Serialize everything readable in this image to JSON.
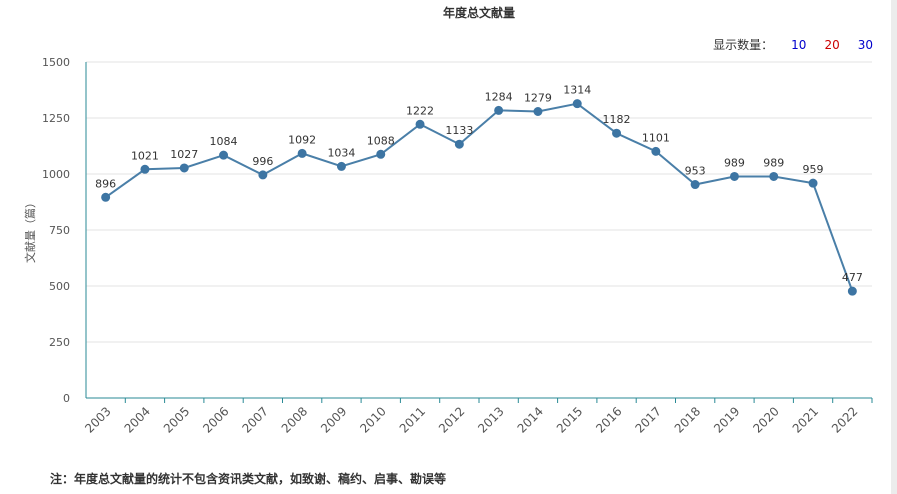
{
  "controls": {
    "show_count_label": "显示数量：",
    "options": [
      {
        "label": "10",
        "color": "#0000cc"
      },
      {
        "label": "20",
        "color": "#cc0000"
      },
      {
        "label": "30",
        "color": "#0000cc"
      }
    ]
  },
  "note": "注：年度总文献量的统计不包含资讯类文献，如致谢、稿约、启事、勘误等",
  "chart_data": {
    "type": "line",
    "title": "年度总文献量",
    "xlabel": "",
    "ylabel": "文献量（篇）",
    "categories": [
      "2003",
      "2004",
      "2005",
      "2006",
      "2007",
      "2008",
      "2009",
      "2010",
      "2011",
      "2012",
      "2013",
      "2014",
      "2015",
      "2016",
      "2017",
      "2018",
      "2019",
      "2020",
      "2021",
      "2022"
    ],
    "values": [
      896,
      1021,
      1027,
      1084,
      996,
      1092,
      1034,
      1088,
      1222,
      1133,
      1284,
      1279,
      1314,
      1182,
      1101,
      953,
      989,
      989,
      959,
      477
    ],
    "ylim": [
      0,
      1500
    ],
    "yticks": [
      0,
      250,
      500,
      750,
      1000,
      1250,
      1500
    ],
    "grid": true,
    "colors": {
      "line": "#4a7fa8",
      "axis": "#2a8a96"
    }
  }
}
